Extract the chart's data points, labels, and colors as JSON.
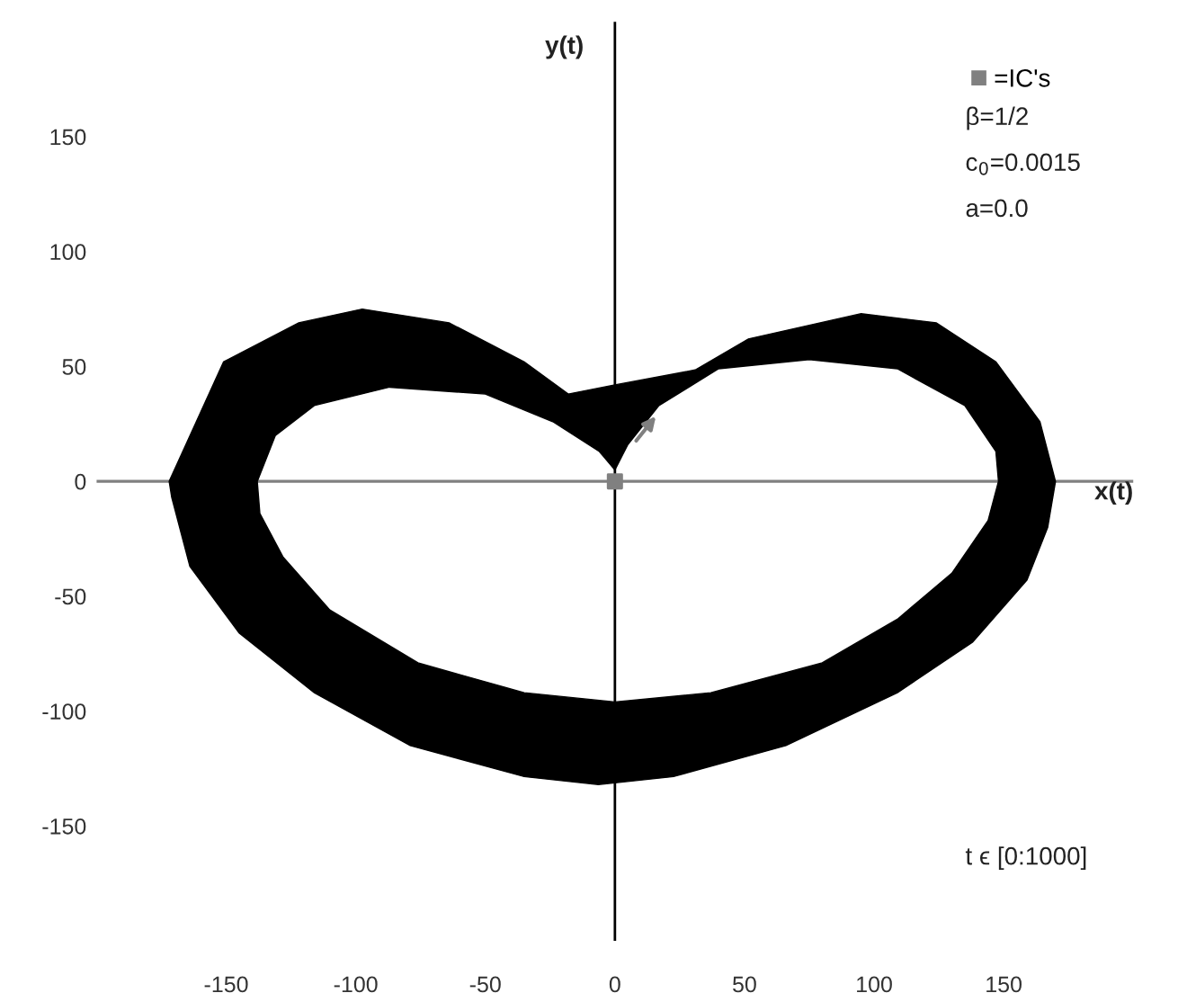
{
  "chart_data": {
    "type": "area",
    "xlabel": "x(t)",
    "ylabel": "y(t)",
    "xlim": [
      -200,
      200
    ],
    "ylim": [
      -200,
      200
    ],
    "xticks": [
      -150,
      -100,
      -50,
      0,
      50,
      100,
      150
    ],
    "yticks": [
      -150,
      -100,
      -50,
      0,
      50,
      100,
      150
    ],
    "grid": false,
    "legend": "top right",
    "annotations": [
      "β=1/2",
      "c$_{0}$=0.0015",
      "a=0.0",
      "t ϵ [0:1000]"
    ],
    "series": [
      {
        "color": "#000000",
        "x": [
          -172,
          -171,
          -164,
          -145,
          -116,
          -79,
          -35,
          -6.4,
          22.6,
          66,
          109,
          138,
          159,
          167,
          170,
          164,
          147,
          124,
          95,
          51.5,
          31,
          0,
          -18,
          -35,
          -64,
          -97.5,
          -122,
          -151,
          null,
          -138,
          -131,
          -116,
          -87,
          -50,
          -24,
          -6,
          0,
          5,
          17,
          40,
          75,
          109,
          135,
          147,
          148,
          144,
          130,
          109,
          80,
          37,
          0,
          -35,
          -76,
          -110,
          -128,
          -137
        ],
        "values": [
          0,
          -7,
          -37,
          -66,
          -92,
          -115,
          -128.5,
          -132,
          -128.5,
          -115,
          -92,
          -70,
          -43,
          -20,
          0,
          26,
          52,
          69,
          73,
          62,
          48.5,
          42,
          38,
          52,
          69,
          75,
          69,
          52,
          null,
          0,
          20,
          33,
          41,
          38,
          26,
          13,
          5,
          16,
          33,
          49,
          53,
          49,
          33,
          13,
          0,
          -17,
          -40,
          -60,
          -79,
          -92,
          -96,
          -92,
          -79,
          -56,
          -33,
          -14
        ]
      },
      {
        "type": "scatter",
        "name": "=IC's",
        "color": "#808080",
        "marker": "square",
        "x": [
          0
        ],
        "values": [
          0
        ]
      }
    ]
  }
}
